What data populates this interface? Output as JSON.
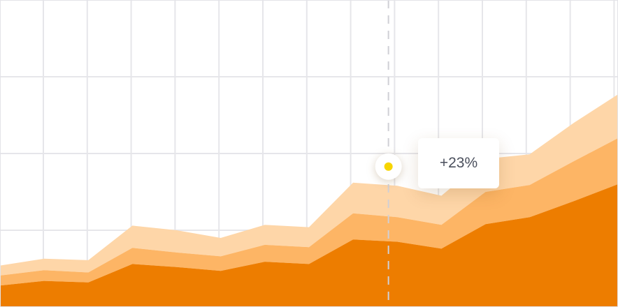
{
  "chart_data": {
    "type": "area",
    "stacked": true,
    "grid": true,
    "x": [
      0,
      1,
      2,
      3,
      4,
      5,
      6,
      7,
      8,
      9,
      10,
      11,
      12,
      13,
      14
    ],
    "xlim": [
      0,
      14
    ],
    "ylim": [
      0,
      4
    ],
    "series": [
      {
        "color": "#ed7d00",
        "values": [
          0.28,
          0.34,
          0.32,
          0.56,
          0.52,
          0.47,
          0.59,
          0.56,
          0.88,
          0.85,
          0.76,
          1.08,
          1.17,
          1.38,
          1.6
        ]
      },
      {
        "color": "#fdb565",
        "values": [
          0.13,
          0.14,
          0.13,
          0.21,
          0.19,
          0.19,
          0.22,
          0.22,
          0.34,
          0.32,
          0.31,
          0.42,
          0.42,
          0.52,
          0.6
        ]
      },
      {
        "color": "#fed6a8",
        "values": [
          0.13,
          0.15,
          0.16,
          0.29,
          0.29,
          0.24,
          0.26,
          0.26,
          0.4,
          0.41,
          0.38,
          0.43,
          0.4,
          0.5,
          0.57
        ]
      }
    ],
    "crosshair": {
      "x": 8.8,
      "y": 1.83
    },
    "tooltip": {
      "label": "+23%"
    }
  }
}
